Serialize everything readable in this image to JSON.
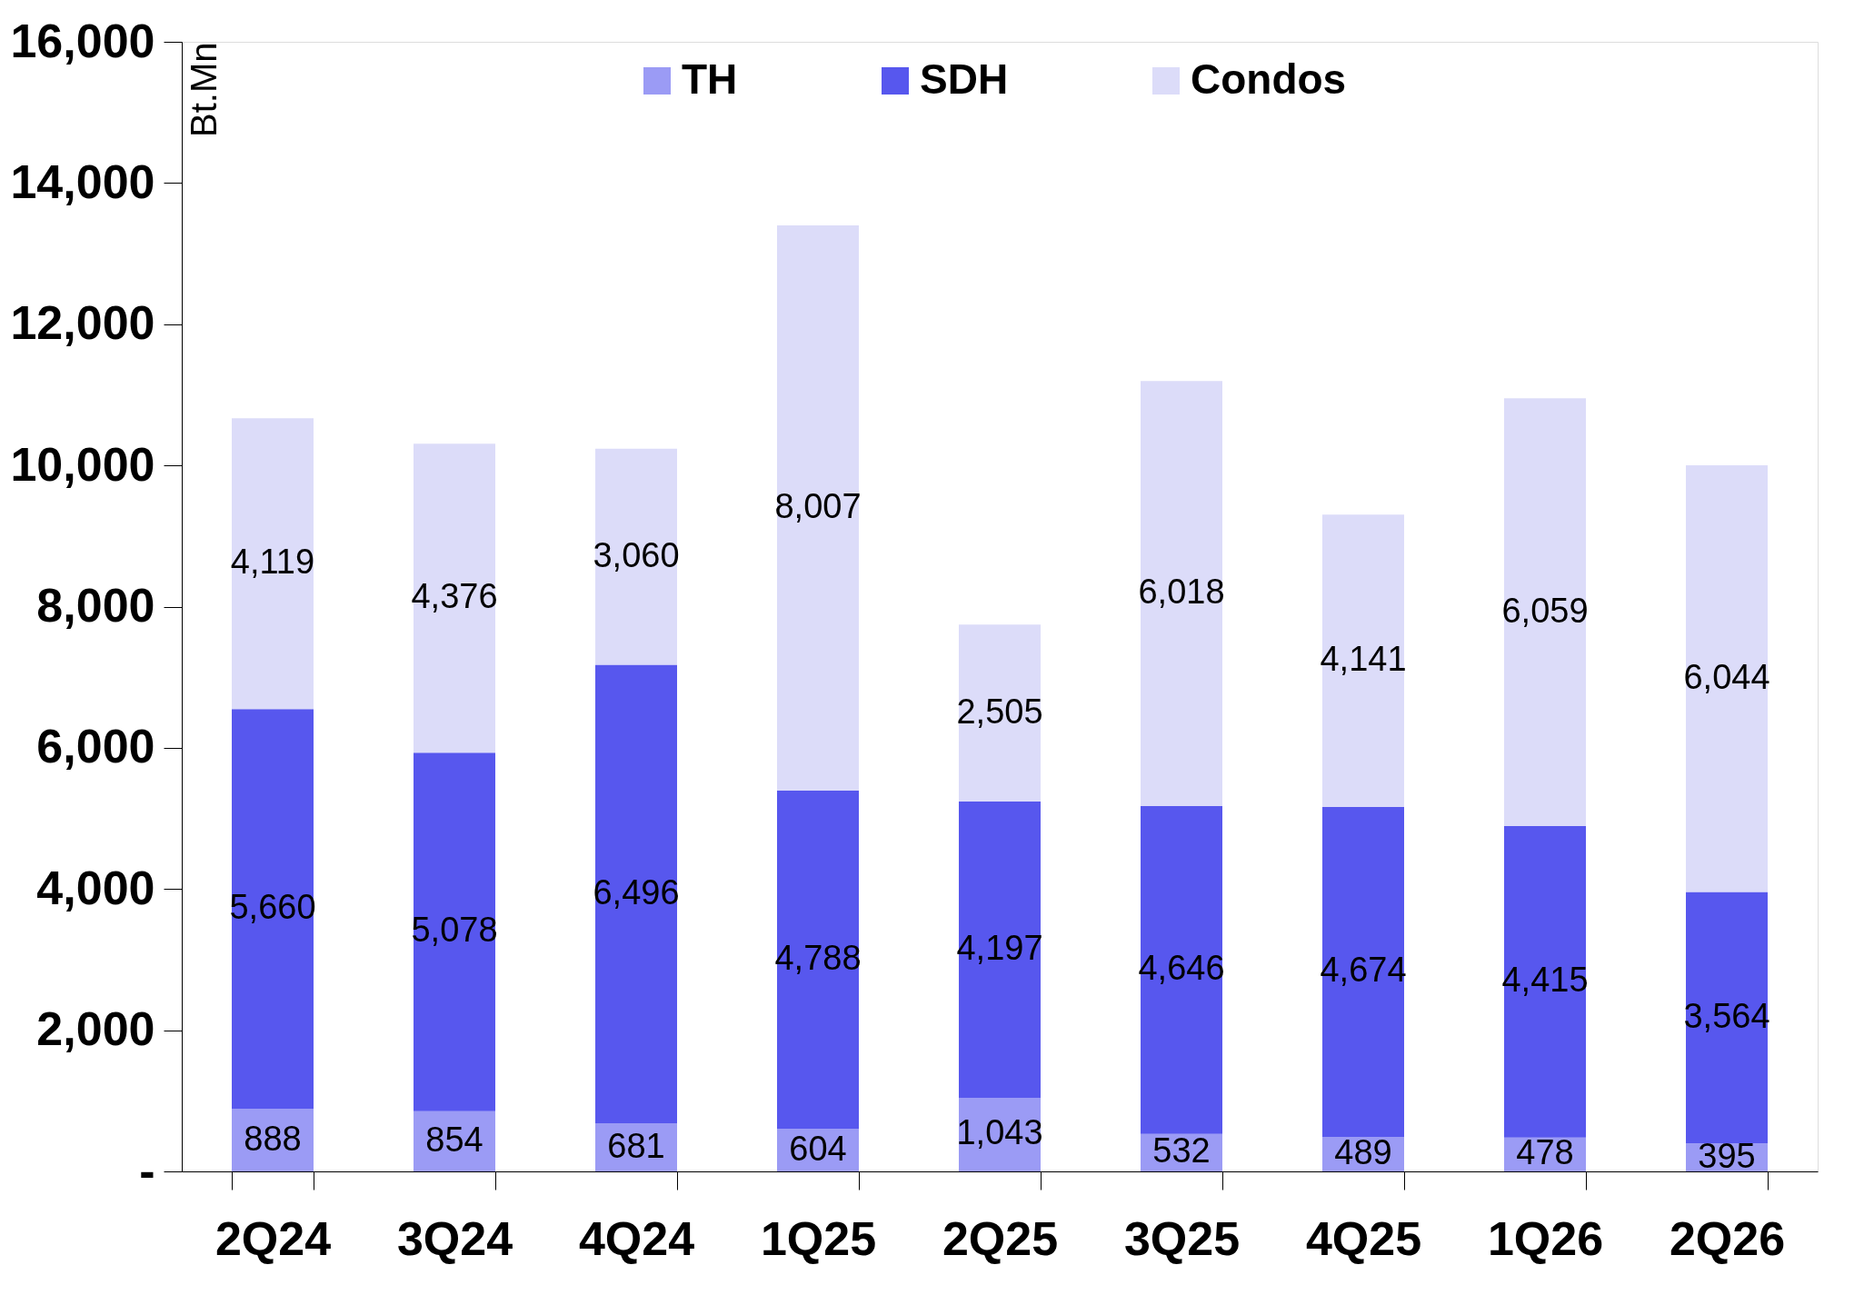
{
  "chart_data": {
    "type": "bar",
    "stacked": true,
    "ylabel": "Bt.Mn",
    "categories": [
      "2Q24",
      "3Q24",
      "4Q24",
      "1Q25",
      "2Q25",
      "3Q25",
      "4Q25",
      "1Q26",
      "2Q26"
    ],
    "series": [
      {
        "name": "TH",
        "color": "#9b9bf5",
        "values": [
          888,
          854,
          681,
          604,
          1043,
          532,
          489,
          478,
          395
        ],
        "value_labels": [
          "888",
          "854",
          "681",
          "604",
          "1,043",
          "532",
          "489",
          "478",
          "395"
        ]
      },
      {
        "name": "SDH",
        "color": "#5757ee",
        "values": [
          5660,
          5078,
          6496,
          4788,
          4197,
          4646,
          4674,
          4415,
          3564
        ],
        "value_labels": [
          "5,660",
          "5,078",
          "6,496",
          "4,788",
          "4,197",
          "4,646",
          "4,674",
          "4,415",
          "3,564"
        ]
      },
      {
        "name": "Condos",
        "color": "#dcdcf9",
        "values": [
          4119,
          4376,
          3060,
          8007,
          2505,
          6018,
          4141,
          6059,
          6044
        ],
        "value_labels": [
          "4,119",
          "4,376",
          "3,060",
          "8,007",
          "2,505",
          "6,018",
          "4,141",
          "6,059",
          "6,044"
        ]
      }
    ],
    "ylim": [
      0,
      16000
    ],
    "yticks": [
      {
        "value": 0,
        "label": "-"
      },
      {
        "value": 2000,
        "label": "2,000"
      },
      {
        "value": 4000,
        "label": "4,000"
      },
      {
        "value": 6000,
        "label": "6,000"
      },
      {
        "value": 8000,
        "label": "8,000"
      },
      {
        "value": 10000,
        "label": "10,000"
      },
      {
        "value": 12000,
        "label": "12,000"
      },
      {
        "value": 14000,
        "label": "14,000"
      },
      {
        "value": 16000,
        "label": "16,000"
      }
    ],
    "legend": "top",
    "grid": false
  }
}
